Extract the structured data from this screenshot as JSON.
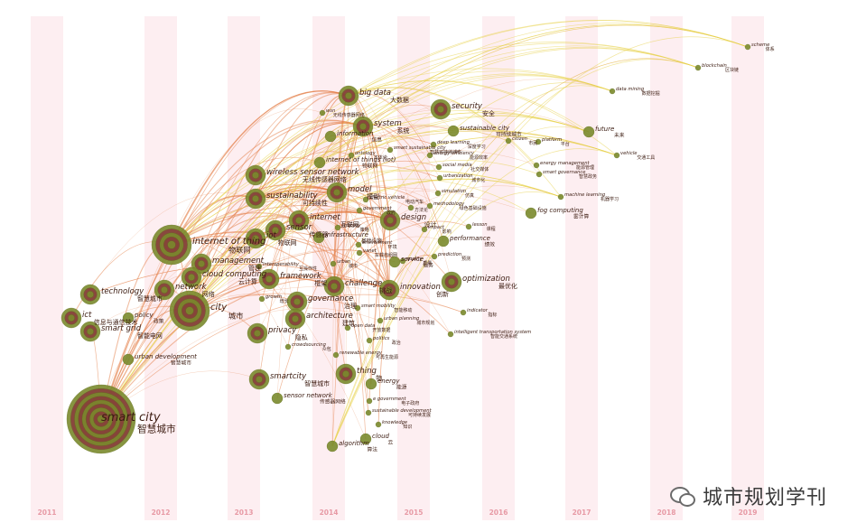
{
  "years": [
    "2011",
    "2012",
    "2013",
    "2014",
    "2015",
    "2016",
    "2017",
    "2018",
    "2019"
  ],
  "colors": {
    "band": "#fdeef1",
    "year_text": "#e79aa5",
    "node_fill": "#7a8a2c",
    "node_ring": "#8a2f3d",
    "label": "#3b1b10",
    "link_warm": "#e37b43",
    "link_yellow": "#e8d24a"
  },
  "nodes": [
    {
      "id": "smart-city",
      "en": "smart city",
      "zh": "智慧城市",
      "size": "xl"
    },
    {
      "id": "internet-of-thing",
      "en": "internet of thing",
      "zh": "物联网",
      "size": "l"
    },
    {
      "id": "city",
      "en": "city",
      "zh": "城市",
      "size": "l"
    },
    {
      "id": "big-data",
      "en": "big data",
      "zh": "大数据",
      "size": "m"
    },
    {
      "id": "internet",
      "en": "internet",
      "zh": "互联网",
      "size": "m"
    },
    {
      "id": "sustainability",
      "en": "sustainability",
      "zh": "可持续性",
      "size": "m"
    },
    {
      "id": "wireless-sensor-network",
      "en": "wireless sensor network",
      "zh": "无线传感器网络",
      "size": "m"
    },
    {
      "id": "management",
      "en": "management",
      "zh": "管理",
      "size": "m"
    },
    {
      "id": "iot",
      "en": "iot",
      "zh": "物联网",
      "size": "m"
    },
    {
      "id": "sensor",
      "en": "sensor",
      "zh": "传感器",
      "size": "m"
    },
    {
      "id": "technology",
      "en": "technology",
      "zh": "智慧城市",
      "size": "m"
    },
    {
      "id": "smart-grid",
      "en": "smart grid",
      "zh": "智能电网",
      "size": "m"
    },
    {
      "id": "ict",
      "en": "ict",
      "zh": "信息与通信技术",
      "size": "m"
    },
    {
      "id": "network",
      "en": "network",
      "zh": "网络",
      "size": "m"
    },
    {
      "id": "cloud-computing",
      "en": "cloud computing",
      "zh": "云计算",
      "size": "m"
    },
    {
      "id": "framework",
      "en": "framework",
      "zh": "框架",
      "size": "m"
    },
    {
      "id": "system",
      "en": "system",
      "zh": "系统",
      "size": "m"
    },
    {
      "id": "security",
      "en": "security",
      "zh": "安全",
      "size": "m"
    },
    {
      "id": "model",
      "en": "model",
      "zh": "模型",
      "size": "m"
    },
    {
      "id": "design",
      "en": "design",
      "zh": "设计",
      "size": "m"
    },
    {
      "id": "challenge",
      "en": "challenge",
      "zh": "挑战",
      "size": "m"
    },
    {
      "id": "innovation",
      "en": "innovation",
      "zh": "创新",
      "size": "m"
    },
    {
      "id": "governance",
      "en": "governance",
      "zh": "治理",
      "size": "m"
    },
    {
      "id": "architecture",
      "en": "architecture",
      "zh": "建筑",
      "size": "m"
    },
    {
      "id": "privacy",
      "en": "privacy",
      "zh": "隐私",
      "size": "m"
    },
    {
      "id": "smartcity",
      "en": "smartcity",
      "zh": "智慧城市",
      "size": "m"
    },
    {
      "id": "thing",
      "en": "thing",
      "zh": "物",
      "size": "m"
    },
    {
      "id": "optimization",
      "en": "optimization",
      "zh": "最优化",
      "size": "m"
    },
    {
      "id": "algorithm",
      "en": "algorithm",
      "zh": "算法",
      "size": "s"
    },
    {
      "id": "cloud",
      "en": "cloud",
      "zh": "云",
      "size": "s"
    },
    {
      "id": "energy",
      "en": "energy",
      "zh": "能源",
      "size": "s"
    },
    {
      "id": "service",
      "en": "service",
      "zh": "服务",
      "size": "s"
    },
    {
      "id": "information",
      "en": "information",
      "zh": "信息",
      "size": "s"
    },
    {
      "id": "infrastructure",
      "en": "infrastructure",
      "zh": "基础设施",
      "size": "s"
    },
    {
      "id": "internet-of-things-iot",
      "en": "internet of things (iot)",
      "zh": "物联网",
      "size": "s"
    },
    {
      "id": "policy",
      "en": "policy",
      "zh": "政策",
      "size": "s"
    },
    {
      "id": "urban-development",
      "en": "urban development",
      "zh": "智慧城市",
      "size": "s"
    },
    {
      "id": "sustainable-city",
      "en": "sustainable city",
      "zh": "可持续城市",
      "size": "s"
    },
    {
      "id": "future",
      "en": "future",
      "zh": "未来",
      "size": "s"
    },
    {
      "id": "performance",
      "en": "performance",
      "zh": "绩效",
      "size": "s"
    },
    {
      "id": "fog-computing",
      "en": "fog computing",
      "zh": "雾计算",
      "size": "s"
    },
    {
      "id": "sensor-network",
      "en": "sensor network",
      "zh": "传感器网络",
      "size": "s"
    },
    {
      "id": "data-mining",
      "en": "data mining",
      "zh": "数据挖掘",
      "size": "xs"
    },
    {
      "id": "blockchain",
      "en": "blockchain",
      "zh": "区块链",
      "size": "xs"
    },
    {
      "id": "scheme",
      "en": "scheme",
      "zh": "体系",
      "size": "xs"
    },
    {
      "id": "vehicle",
      "en": "vehicle",
      "zh": "交通工具",
      "size": "xs"
    },
    {
      "id": "machine-learning",
      "en": "machine learning",
      "zh": "机器学习",
      "size": "xs"
    },
    {
      "id": "energy-efficiency",
      "en": "energy efficiency",
      "zh": "能源效率",
      "size": "xs"
    },
    {
      "id": "social-media",
      "en": "social media",
      "zh": "社交媒体",
      "size": "xs"
    },
    {
      "id": "urbanization",
      "en": "urbanization",
      "zh": "城市化",
      "size": "xs"
    },
    {
      "id": "simulation",
      "en": "simulation",
      "zh": "仿真",
      "size": "xs"
    },
    {
      "id": "methodology",
      "en": "methodology",
      "zh": "绿色基础设施",
      "size": "xs"
    },
    {
      "id": "impact",
      "en": "impact",
      "zh": "影响",
      "size": "xs"
    },
    {
      "id": "lesson",
      "en": "lesson",
      "zh": "课程",
      "size": "xs"
    },
    {
      "id": "prediction",
      "en": "prediction",
      "zh": "预测",
      "size": "xs"
    },
    {
      "id": "indicator",
      "en": "indicator",
      "zh": "指标",
      "size": "xs"
    },
    {
      "id": "its",
      "en": "intelligent transportation system",
      "zh": "智能交通系统",
      "size": "xs"
    },
    {
      "id": "smart-mobility",
      "en": "smart mobility",
      "zh": "智能移动",
      "size": "xs"
    },
    {
      "id": "urban-planning",
      "en": "urban planning",
      "zh": "城市规划",
      "size": "xs"
    },
    {
      "id": "open-data",
      "en": "open data",
      "zh": "开放数据",
      "size": "xs"
    },
    {
      "id": "politics",
      "en": "politics",
      "zh": "政治",
      "size": "xs"
    },
    {
      "id": "renewable-energy",
      "en": "renewable energy",
      "zh": "可再生能源",
      "size": "xs"
    },
    {
      "id": "crowdsourcing",
      "en": "crowdsourcing",
      "zh": "众包",
      "size": "xs"
    },
    {
      "id": "e-government",
      "en": "e government",
      "zh": "电子政府",
      "size": "xs"
    },
    {
      "id": "sustainable-development",
      "en": "sustainable development",
      "zh": "可持续发展",
      "size": "xs"
    },
    {
      "id": "knowledge",
      "en": "knowledge",
      "zh": "知识",
      "size": "xs"
    },
    {
      "id": "deep-learning",
      "en": "deep learning",
      "zh": "深度学习",
      "size": "xs"
    },
    {
      "id": "citizen",
      "en": "citizen",
      "zh": "市民",
      "size": "xs"
    },
    {
      "id": "platform",
      "en": "platform",
      "zh": "平台",
      "size": "xs"
    },
    {
      "id": "energy-management",
      "en": "energy management",
      "zh": "能源管理",
      "size": "xs"
    },
    {
      "id": "smart-governance",
      "en": "smart governance",
      "zh": "智慧政务",
      "size": "xs"
    },
    {
      "id": "ontology",
      "en": "ontology",
      "zh": "本体论",
      "size": "xs"
    },
    {
      "id": "interoperability",
      "en": "interoperability",
      "zh": "互操作性",
      "size": "xs"
    },
    {
      "id": "growth",
      "en": "growth",
      "zh": "增长",
      "size": "xs"
    },
    {
      "id": "strategy",
      "en": "strategy",
      "zh": "策略",
      "size": "xs"
    },
    {
      "id": "environment",
      "en": "environment",
      "zh": "环境",
      "size": "xs"
    },
    {
      "id": "vanet",
      "en": "vanet",
      "zh": "车载自组网",
      "size": "xs"
    },
    {
      "id": "quality",
      "en": "quality",
      "zh": "质量",
      "size": "xs"
    },
    {
      "id": "government",
      "en": "government",
      "zh": "政府",
      "size": "xs"
    },
    {
      "id": "electric-vehicle",
      "en": "electric vehicle",
      "zh": "电动汽车",
      "size": "xs"
    },
    {
      "id": "wsn",
      "en": "wsn",
      "zh": "无线传感器网络",
      "size": "xs"
    },
    {
      "id": "smart-sustainable-city",
      "en": "smart sustainable city",
      "zh": "智慧可持续城市",
      "size": "xs"
    },
    {
      "id": "optimization-method",
      "en": "",
      "zh": "方法论",
      "size": "xs"
    },
    {
      "id": "urban",
      "en": "urban",
      "zh": "城市",
      "size": "xs"
    }
  ],
  "watermark": {
    "text": "城市规划学刊"
  }
}
